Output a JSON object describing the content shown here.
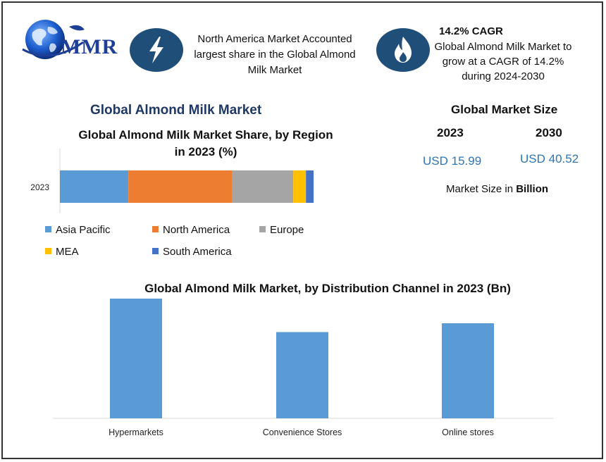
{
  "header": {
    "logo_text": "MMR",
    "north_america_text": [
      "North America Market Accounted",
      "largest share in the Global Almond",
      "Milk Market"
    ],
    "cagr_title": "14.2% CAGR",
    "cagr_text": [
      "Global Almond Milk Market to",
      "grow at a CAGR of 14.2%",
      "during 2024-2030"
    ],
    "icons": {
      "left": "lightning-icon",
      "right": "flame-icon"
    },
    "accent_color": "#1f4e79"
  },
  "main_title": "Global Almond Milk Market",
  "market_size": {
    "title": "Global Market Size",
    "years": [
      "2023",
      "2030"
    ],
    "values": [
      "USD 15.99",
      "USD 40.52"
    ],
    "note_prefix": "Market Size in",
    "note_bold": "Billion"
  },
  "chart_data": [
    {
      "type": "bar",
      "orientation": "horizontal-stacked",
      "title": [
        "Global Almond Milk Market Share, by Region",
        "in 2023 (%)"
      ],
      "categories": [
        "2023"
      ],
      "series": [
        {
          "name": "Asia Pacific",
          "values": [
            27
          ],
          "color": "#5b9bd5"
        },
        {
          "name": "North America",
          "values": [
            41
          ],
          "color": "#ed7d31"
        },
        {
          "name": "Europe",
          "values": [
            24
          ],
          "color": "#a5a5a5"
        },
        {
          "name": "MEA",
          "values": [
            5
          ],
          "color": "#ffc000"
        },
        {
          "name": "South America",
          "values": [
            3
          ],
          "color": "#4472c4"
        }
      ],
      "xlim": [
        0,
        100
      ],
      "grid": false,
      "legend": "bottom"
    },
    {
      "type": "bar",
      "title": "Global Almond Milk Market, by Distribution Channel  in 2023 (Bn)",
      "categories": [
        "Hypermarkets",
        "Convenience Stores",
        "Online stores"
      ],
      "values": [
        6.8,
        4.9,
        5.4
      ],
      "ylim": [
        0,
        7
      ],
      "color": "#5b9bd5",
      "grid": false,
      "legend": "none"
    }
  ]
}
